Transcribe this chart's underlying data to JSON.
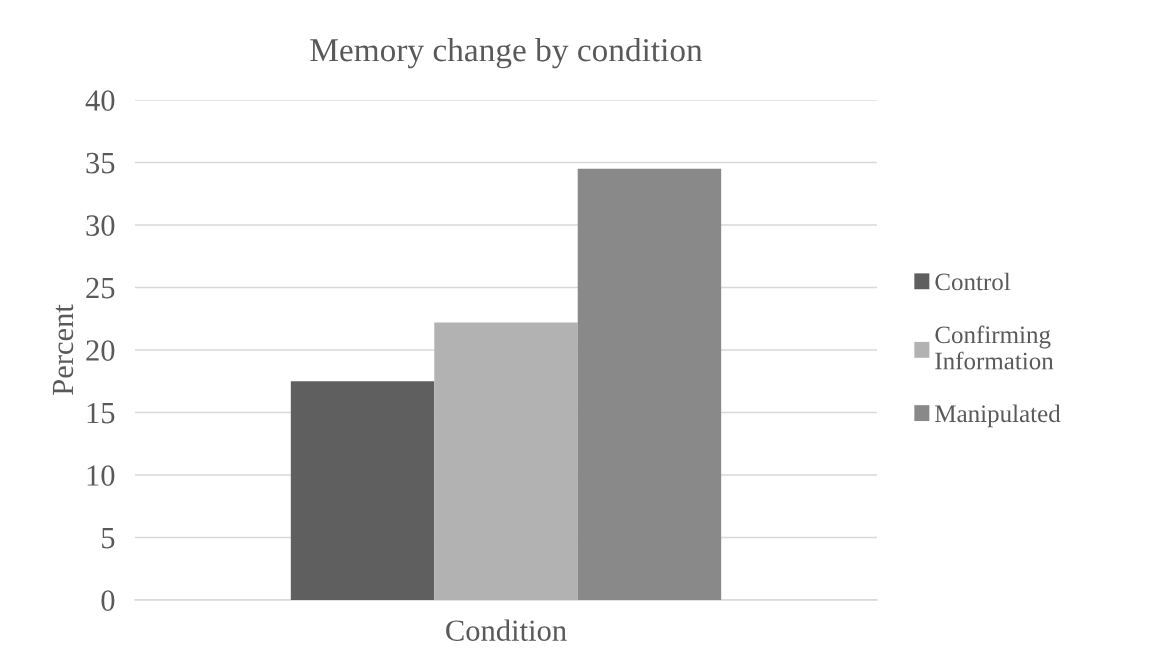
{
  "chart_data": {
    "type": "bar",
    "title": "Memory change by condition",
    "xlabel": "Condition",
    "ylabel": "Percent",
    "categories": [
      null
    ],
    "series": [
      {
        "name": "Control",
        "color": "#5f5f5f",
        "values": [
          17.5
        ]
      },
      {
        "name": "Confirming\nInformation",
        "color": "#b2b2b2",
        "values": [
          22.2
        ]
      },
      {
        "name": "Manipulated",
        "color": "#898989",
        "values": [
          34.5
        ]
      }
    ],
    "ylim": [
      0,
      40
    ],
    "yticks": [
      0,
      5,
      10,
      15,
      20,
      25,
      30,
      35,
      40
    ],
    "grid": "y",
    "legend": "right"
  }
}
